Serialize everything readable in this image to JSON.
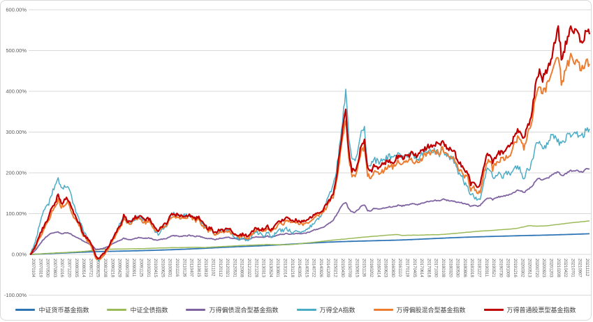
{
  "chart_data": {
    "type": "line",
    "title": "",
    "xlabel": "",
    "ylabel": "",
    "ylim": [
      -100,
      600
    ],
    "grid": true,
    "legend_position": "bottom",
    "y_tick_labels": [
      "600.00%",
      "500.00%",
      "400.00%",
      "300.00%",
      "200.00%",
      "100.00%",
      "0.00%",
      "-100.00%"
    ],
    "x_tick_labels": [
      "20070104",
      "20070319",
      "20070530",
      "20070803",
      "20071016",
      "20071220",
      "20080305",
      "20080514",
      "20080721",
      "20080925",
      "20081208",
      "20090218",
      "20090429",
      "20090708",
      "20090911",
      "20091125",
      "20100201",
      "20100415",
      "20100625",
      "20100831",
      "20101116",
      "20110126",
      "20110407",
      "20110615",
      "20110819",
      "20111102",
      "20120112",
      "20120321",
      "20120531",
      "20120808",
      "20121022",
      "20121228",
      "20130313",
      "20130524",
      "20130801",
      "20131014",
      "20131218",
      "20140305",
      "20140515",
      "20140722",
      "20140926",
      "20141209",
      "20150212",
      "20150430",
      "20150709",
      "20150915",
      "20151126",
      "20160202",
      "20160414",
      "20160623",
      "20160830",
      "20161110",
      "20170119",
      "20170405",
      "20170614",
      "20170818",
      "20171030",
      "20180108",
      "20180320",
      "20180530",
      "20180806",
      "20181018",
      "20181227",
      "20190311",
      "20190521",
      "20190730",
      "20191009",
      "20191216",
      "20200302",
      "20200513",
      "20200720",
      "20200923",
      "20201203",
      "20210208",
      "20210422",
      "20210701",
      "20210907",
      "20211112"
    ],
    "x_start": "2007-01",
    "x_end": "2021-12",
    "x_resolution": "monthly",
    "series": [
      {
        "name": "中证货币基金指数",
        "color": "#2E75B6",
        "width": 1.8,
        "noise": 0,
        "values": [
          0,
          0.3,
          0.6,
          0.9,
          1.2,
          1.5,
          1.9,
          2.2,
          2.6,
          2.9,
          3.2,
          3.5,
          3.9,
          4.2,
          4.6,
          4.9,
          5.2,
          5.5,
          5.8,
          6.1,
          6.4,
          6.7,
          6.9,
          7.1,
          7.3,
          7.4,
          7.6,
          7.7,
          7.9,
          8,
          8.2,
          8.3,
          8.5,
          8.7,
          8.9,
          9.1,
          9.3,
          9.5,
          9.7,
          9.9,
          10.1,
          10.4,
          10.6,
          10.9,
          11.1,
          11.4,
          11.7,
          12,
          12.3,
          12.6,
          12.9,
          13.2,
          13.6,
          13.9,
          14.3,
          14.6,
          15,
          15.4,
          15.8,
          16.2,
          16.6,
          17,
          17.4,
          17.7,
          18.1,
          18.4,
          18.8,
          19.1,
          19.4,
          19.7,
          20,
          20.3,
          20.6,
          20.9,
          21.2,
          21.6,
          21.9,
          22.3,
          22.7,
          23.1,
          23.5,
          23.9,
          24.4,
          24.8,
          25.3,
          25.7,
          26.2,
          26.6,
          27.1,
          27.5,
          27.9,
          28.3,
          28.7,
          29.1,
          29.5,
          29.9,
          30.2,
          30.5,
          30.8,
          31.1,
          31.4,
          31.6,
          31.9,
          32.1,
          32.3,
          32.5,
          32.7,
          32.9,
          33.1,
          33.3,
          33.5,
          33.7,
          33.9,
          34.1,
          34.3,
          34.5,
          34.7,
          34.9,
          35.1,
          35.4,
          35.7,
          36,
          36.3,
          36.7,
          37,
          37.4,
          37.7,
          38.1,
          38.4,
          38.8,
          39.1,
          39.5,
          39.8,
          40.2,
          40.5,
          40.8,
          41.1,
          41.4,
          41.7,
          42,
          42.3,
          42.5,
          42.8,
          43,
          43.2,
          43.4,
          43.7,
          43.9,
          44.1,
          44.3,
          44.5,
          44.7,
          44.9,
          45.1,
          45.3,
          45.5,
          45.7,
          45.9,
          46.1,
          46.3,
          46.5,
          46.6,
          46.8,
          46.9,
          47.1,
          47.3,
          47.5,
          47.7,
          47.9,
          48.1,
          48.4,
          48.6,
          48.9,
          49.1,
          49.4,
          49.6,
          49.9,
          50.1,
          50.4,
          50.6
        ]
      },
      {
        "name": "中证全债指数",
        "color": "#9BBB59",
        "width": 1.5,
        "noise": 0.25,
        "values": [
          0,
          0.3,
          0.7,
          1.2,
          1.7,
          2.2,
          2.7,
          3.1,
          3.5,
          3.9,
          4.2,
          4.5,
          5,
          5.4,
          5.8,
          6.2,
          6.7,
          7.2,
          7.8,
          8.6,
          9.6,
          10.8,
          11.8,
          12.5,
          12.8,
          12.9,
          12.8,
          12.9,
          13,
          13.1,
          13.2,
          13.4,
          13.5,
          13.7,
          13.8,
          14,
          14.2,
          14.5,
          14.7,
          15,
          15.2,
          15.5,
          15.7,
          16,
          16.2,
          16.4,
          16.5,
          16.5,
          16.6,
          16.8,
          17,
          17.1,
          17.2,
          17.3,
          17.2,
          17,
          16.9,
          17.3,
          17.8,
          18.3,
          18.6,
          19,
          19.4,
          19.8,
          20.2,
          20.6,
          21,
          21.4,
          21.8,
          22.1,
          22.4,
          22.7,
          23,
          23.3,
          23.6,
          23.8,
          24,
          24.1,
          24,
          23.8,
          23.7,
          23.9,
          23.8,
          24,
          24.5,
          25.2,
          26,
          26.8,
          27.6,
          28.4,
          29.2,
          30,
          30.8,
          31.6,
          32.5,
          33.5,
          34.3,
          35,
          35.8,
          36.5,
          37.2,
          37.8,
          38.6,
          39.4,
          40.2,
          41,
          41.8,
          42.5,
          43.2,
          43.8,
          44.4,
          45,
          45.6,
          46.2,
          46.9,
          47.6,
          48.2,
          48.8,
          48.2,
          46.5,
          46.7,
          46.9,
          47,
          47.2,
          47.1,
          47.3,
          47.6,
          47.9,
          48.1,
          48.4,
          48.3,
          48.6,
          49,
          49.6,
          50.2,
          50.9,
          51.5,
          52.2,
          53,
          53.7,
          54.3,
          55,
          55.8,
          56.6,
          57.2,
          57.6,
          58,
          58.3,
          58.9,
          59.5,
          60.2,
          60.8,
          61.3,
          61.8,
          62.4,
          63.2,
          64.2,
          66,
          67.5,
          69.5,
          70.5,
          69.8,
          69.2,
          69.5,
          69.8,
          70.2,
          70.8,
          71.8,
          72.8,
          73.6,
          74.6,
          75.6,
          76.5,
          77.4,
          78.2,
          79,
          79.7,
          80.4,
          81.2,
          82
        ]
      },
      {
        "name": "万得偏债混合型基金指数",
        "color": "#8064A2",
        "width": 1.8,
        "noise": 1.2,
        "values": [
          0,
          5,
          13,
          24,
          34,
          42,
          48,
          52,
          54,
          55,
          50,
          52,
          53,
          50,
          45,
          42,
          38,
          33,
          29,
          25,
          20,
          13,
          12,
          14,
          16,
          20,
          24,
          28,
          32,
          35,
          40,
          37,
          36,
          38,
          40,
          42,
          40,
          39,
          41,
          38,
          36,
          35,
          37,
          38,
          40,
          44,
          46,
          45,
          44,
          45,
          45,
          47,
          45,
          44,
          45,
          42,
          40,
          38,
          39,
          36,
          38,
          40,
          40,
          42,
          41,
          39,
          38,
          37,
          38,
          37,
          37,
          40,
          43,
          43,
          43,
          42,
          45,
          42,
          44,
          47,
          49,
          49,
          51,
          50,
          50,
          51,
          51,
          51,
          52,
          54,
          57,
          60,
          62,
          64,
          67,
          73,
          78,
          84,
          96,
          110,
          122,
          128,
          112,
          104,
          103,
          110,
          118,
          122,
          108,
          107,
          112,
          112,
          111,
          113,
          115,
          117,
          116,
          118,
          121,
          119,
          120,
          122,
          124,
          123,
          122,
          125,
          127,
          129,
          130,
          132,
          132,
          131,
          136,
          133,
          132,
          131,
          130,
          127,
          127,
          124,
          124,
          118,
          120,
          118,
          120,
          129,
          136,
          139,
          134,
          138,
          141,
          142,
          144,
          146,
          148,
          153,
          157,
          156,
          151,
          158,
          163,
          171,
          183,
          186,
          183,
          185,
          189,
          196,
          199,
          203,
          193,
          196,
          201,
          206,
          204,
          207,
          201,
          204,
          209,
          210
        ]
      },
      {
        "name": "万得全A指数",
        "color": "#4BACC6",
        "width": 1.5,
        "noise": 5,
        "values": [
          0,
          15,
          40,
          70,
          100,
          115,
          125,
          150,
          165,
          185,
          158,
          165,
          170,
          148,
          118,
          98,
          82,
          58,
          44,
          32,
          15,
          -8,
          -16,
          -6,
          2,
          16,
          32,
          48,
          62,
          78,
          95,
          82,
          76,
          86,
          90,
          95,
          86,
          80,
          86,
          72,
          56,
          50,
          60,
          66,
          72,
          92,
          100,
          95,
          92,
          96,
          95,
          99,
          92,
          88,
          90,
          78,
          66,
          56,
          62,
          48,
          52,
          58,
          56,
          60,
          56,
          46,
          42,
          36,
          42,
          36,
          32,
          46,
          56,
          52,
          50,
          46,
          56,
          42,
          46,
          56,
          60,
          58,
          64,
          58,
          54,
          58,
          56,
          54,
          58,
          62,
          70,
          78,
          86,
          92,
          105,
          138,
          152,
          168,
          205,
          265,
          330,
          400,
          290,
          235,
          225,
          262,
          300,
          310,
          222,
          215,
          232,
          230,
          226,
          230,
          236,
          240,
          236,
          240,
          250,
          240,
          242,
          246,
          250,
          242,
          234,
          242,
          246,
          256,
          255,
          256,
          250,
          246,
          262,
          246,
          240,
          232,
          226,
          196,
          192,
          176,
          170,
          142,
          146,
          132,
          136,
          176,
          202,
          212,
          186,
          196,
          196,
          190,
          196,
          200,
          196,
          210,
          216,
          206,
          186,
          206,
          212,
          236,
          272,
          276,
          262,
          266,
          276,
          292,
          292,
          276,
          270,
          282,
          292,
          296,
          290,
          296,
          286,
          292,
          306,
          308
        ]
      },
      {
        "name": "万得偏股混合型基金指数",
        "color": "#ED7D31",
        "width": 2,
        "noise": 4.5,
        "values": [
          0,
          8,
          22,
          40,
          56,
          70,
          84,
          105,
          118,
          134,
          116,
          122,
          128,
          112,
          90,
          80,
          66,
          48,
          38,
          28,
          12,
          -8,
          -14,
          -5,
          2,
          14,
          28,
          42,
          56,
          68,
          88,
          78,
          74,
          82,
          86,
          90,
          82,
          78,
          82,
          70,
          58,
          55,
          64,
          69,
          75,
          90,
          95,
          92,
          89,
          91,
          91,
          94,
          87,
          83,
          85,
          73,
          65,
          58,
          61,
          48,
          52,
          57,
          56,
          59,
          56,
          48,
          46,
          42,
          46,
          42,
          40,
          50,
          59,
          57,
          57,
          55,
          64,
          55,
          61,
          70,
          77,
          76,
          83,
          80,
          76,
          78,
          76,
          74,
          76,
          80,
          86,
          91,
          95,
          97,
          103,
          119,
          129,
          143,
          175,
          228,
          285,
          332,
          236,
          194,
          190,
          218,
          252,
          264,
          194,
          190,
          202,
          202,
          200,
          206,
          212,
          217,
          214,
          219,
          228,
          222,
          222,
          226,
          231,
          228,
          224,
          234,
          240,
          247,
          250,
          254,
          252,
          247,
          262,
          247,
          242,
          235,
          231,
          209,
          205,
          192,
          188,
          160,
          162,
          150,
          154,
          192,
          220,
          229,
          210,
          224,
          232,
          234,
          238,
          244,
          250,
          270,
          284,
          280,
          260,
          288,
          308,
          344,
          400,
          412,
          398,
          407,
          428,
          455,
          472,
          490,
          422,
          440,
          465,
          484,
          472,
          484,
          452,
          460,
          475,
          467
        ]
      },
      {
        "name": "万得普通股票型基金指数",
        "color": "#C00000",
        "width": 2.2,
        "noise": 4.5,
        "values": [
          0,
          10,
          25,
          45,
          62,
          78,
          92,
          115,
          128,
          145,
          126,
          132,
          138,
          122,
          98,
          86,
          72,
          52,
          42,
          32,
          18,
          -4,
          -10,
          -2,
          6,
          18,
          32,
          46,
          60,
          74,
          95,
          84,
          80,
          88,
          92,
          96,
          88,
          84,
          88,
          76,
          64,
          60,
          68,
          74,
          80,
          96,
          100,
          97,
          94,
          96,
          96,
          99,
          92,
          88,
          90,
          78,
          70,
          62,
          66,
          52,
          56,
          62,
          60,
          63,
          60,
          52,
          50,
          46,
          50,
          46,
          44,
          54,
          64,
          62,
          62,
          60,
          70,
          60,
          66,
          76,
          84,
          82,
          90,
          86,
          82,
          84,
          82,
          80,
          82,
          86,
          92,
          98,
          102,
          104,
          110,
          126,
          136,
          152,
          188,
          245,
          305,
          352,
          250,
          208,
          202,
          232,
          268,
          280,
          208,
          202,
          218,
          216,
          214,
          220,
          226,
          232,
          228,
          234,
          244,
          238,
          238,
          242,
          248,
          244,
          240,
          250,
          256,
          264,
          266,
          272,
          270,
          264,
          280,
          264,
          260,
          252,
          248,
          224,
          220,
          206,
          202,
          172,
          174,
          162,
          168,
          208,
          238,
          248,
          228,
          242,
          250,
          252,
          256,
          264,
          270,
          292,
          308,
          302,
          282,
          312,
          332,
          372,
          432,
          446,
          432,
          442,
          462,
          492,
          522,
          560,
          482,
          502,
          532,
          556,
          540,
          556,
          522,
          532,
          548,
          540
        ]
      }
    ]
  },
  "colors": {
    "background": "#FFFFFF",
    "grid": "#D9D9D9",
    "axis_text": "#595959",
    "frame_border": "#D9D9D9"
  }
}
